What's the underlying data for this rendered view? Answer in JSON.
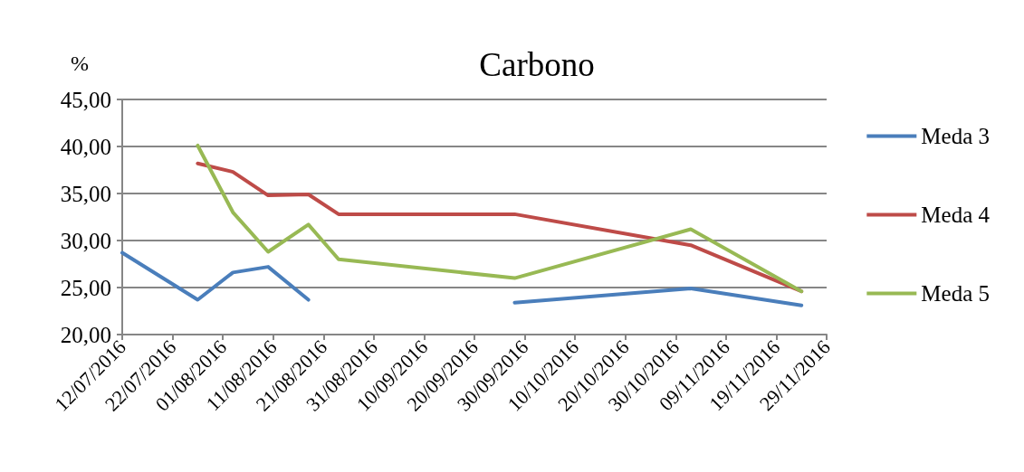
{
  "chart_data": {
    "type": "line",
    "title": "Carbono",
    "ylabel": "%",
    "x": [
      "2016-07-12",
      "2016-07-27",
      "2016-08-03",
      "2016-08-10",
      "2016-08-18",
      "2016-08-24",
      "2016-09-28",
      "2016-11-02",
      "2016-11-24"
    ],
    "series": [
      {
        "name": "Meda 3",
        "color": "#4a7ebb",
        "values": [
          28.7,
          23.7,
          26.6,
          27.2,
          23.7,
          null,
          23.4,
          24.9,
          23.1
        ]
      },
      {
        "name": "Meda 4",
        "color": "#be4b48",
        "values": [
          null,
          38.2,
          37.3,
          34.8,
          34.9,
          32.8,
          32.8,
          29.5,
          24.6
        ]
      },
      {
        "name": "Meda 5",
        "color": "#98b954",
        "values": [
          null,
          40.1,
          33.0,
          28.8,
          31.7,
          28.0,
          26.0,
          31.2,
          24.6
        ]
      }
    ],
    "xlim": [
      "2016-07-12",
      "2016-11-29"
    ],
    "xticks": [
      {
        "value": "2016-07-12",
        "label": "12/07/2016"
      },
      {
        "value": "2016-07-22",
        "label": "22/07/2016"
      },
      {
        "value": "2016-08-01",
        "label": "01/08/2016"
      },
      {
        "value": "2016-08-11",
        "label": "11/08/2016"
      },
      {
        "value": "2016-08-21",
        "label": "21/08/2016"
      },
      {
        "value": "2016-08-31",
        "label": "31/08/2016"
      },
      {
        "value": "2016-09-10",
        "label": "10/09/2016"
      },
      {
        "value": "2016-09-20",
        "label": "20/09/2016"
      },
      {
        "value": "2016-09-30",
        "label": "30/09/2016"
      },
      {
        "value": "2016-10-10",
        "label": "10/10/2016"
      },
      {
        "value": "2016-10-20",
        "label": "20/10/2016"
      },
      {
        "value": "2016-10-30",
        "label": "30/10/2016"
      },
      {
        "value": "2016-11-09",
        "label": "09/11/2016"
      },
      {
        "value": "2016-11-19",
        "label": "19/11/2016"
      },
      {
        "value": "2016-11-29",
        "label": "29/11/2016"
      }
    ],
    "ylim": [
      20,
      45
    ],
    "yticks": [
      {
        "value": 20,
        "label": "20,00"
      },
      {
        "value": 25,
        "label": "25,00"
      },
      {
        "value": 30,
        "label": "30,00"
      },
      {
        "value": 35,
        "label": "35,00"
      },
      {
        "value": 40,
        "label": "40,00"
      },
      {
        "value": 45,
        "label": "45,00"
      }
    ],
    "grid": "y",
    "legend": "right",
    "marker": "none",
    "line_style": "solid"
  }
}
